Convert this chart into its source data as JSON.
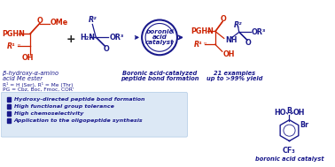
{
  "bg_color": "#ffffff",
  "bullet_box_color": "#dce8f5",
  "bullet_box_edge": "#b8d0e8",
  "bullets": [
    "Hydroxy-directed peptide bond formation",
    "High functional group tolerance",
    "High chemoselectivity",
    "Application to the oligopeptide synthesis"
  ],
  "bullet_color": "#1a1a8c",
  "bullet_marker_color": "#1a1a8c",
  "red": "#cc2200",
  "blue": "#1a1a8c",
  "black": "#222222"
}
